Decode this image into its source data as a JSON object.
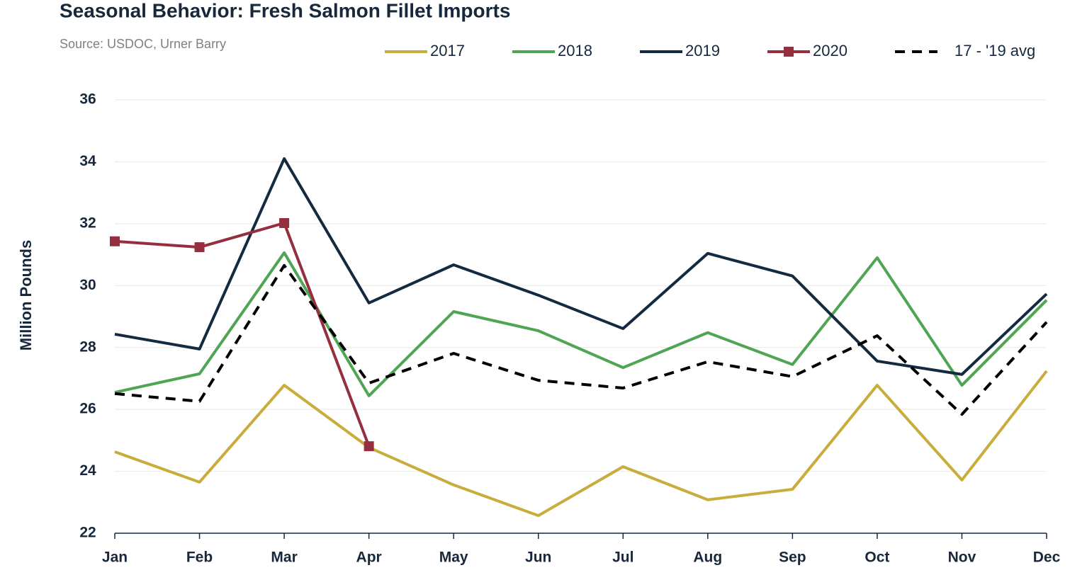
{
  "chart_data": {
    "type": "line",
    "title": "Seasonal Behavior: Fresh Salmon Fillet Imports",
    "subtitle": "Source: USDOC, Urner Barry",
    "y_label": "Million Pounds",
    "categories": [
      "Jan",
      "Feb",
      "Mar",
      "Apr",
      "May",
      "Jun",
      "Jul",
      "Aug",
      "Sep",
      "Oct",
      "Nov",
      "Dec"
    ],
    "series": [
      {
        "name": "2017",
        "color": "#c8ac3c",
        "values": [
          24.63,
          23.65,
          26.78,
          24.77,
          23.56,
          22.57,
          24.15,
          23.08,
          23.42,
          26.78,
          23.72,
          27.24
        ]
      },
      {
        "name": "2018",
        "color": "#4fa553",
        "values": [
          26.55,
          27.15,
          31.06,
          26.44,
          29.16,
          28.54,
          27.35,
          28.48,
          27.45,
          30.9,
          26.78,
          29.53
        ]
      },
      {
        "name": "2019",
        "color": "#142a40",
        "values": [
          28.43,
          27.95,
          34.1,
          29.44,
          30.67,
          29.69,
          28.61,
          31.04,
          30.31,
          27.56,
          27.13,
          29.73
        ]
      },
      {
        "name": "2020",
        "color": "#962f3d",
        "marker": "square",
        "values": [
          31.43,
          31.24,
          32.02,
          24.81,
          null,
          null,
          null,
          null,
          null,
          null,
          null,
          null
        ]
      },
      {
        "name": "17 - '19 avg",
        "color": "#000000",
        "dash": true,
        "values": [
          26.51,
          26.26,
          30.65,
          26.85,
          27.81,
          26.94,
          26.69,
          27.54,
          27.06,
          28.38,
          25.84,
          28.82
        ]
      }
    ],
    "ylim": [
      22,
      36
    ],
    "yticks": [
      22,
      24,
      26,
      28,
      30,
      32,
      34,
      36
    ],
    "grid": true,
    "legend": "top-right"
  }
}
